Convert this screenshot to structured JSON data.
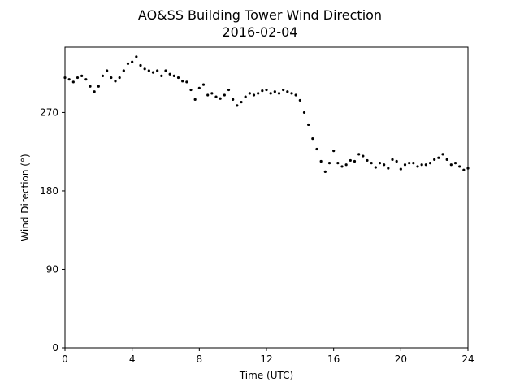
{
  "chart_data": {
    "type": "scatter",
    "title": "AO&SS Building Tower Wind Direction",
    "subtitle": "2016-02-04",
    "xlabel": "Time (UTC)",
    "ylabel": "Wind Direction (°)",
    "xlim": [
      0,
      24
    ],
    "ylim": [
      0,
      345
    ],
    "xticks": [
      0,
      4,
      8,
      12,
      16,
      20,
      24
    ],
    "yticks": [
      0,
      90,
      180,
      270
    ],
    "grid": false,
    "marker_color": "#000000",
    "series": [
      {
        "x": [
          0.0,
          0.25,
          0.5,
          0.75,
          1.0,
          1.25,
          1.5,
          1.75,
          2.0,
          2.25,
          2.5,
          2.75,
          3.0,
          3.25,
          3.5,
          3.75,
          4.0,
          4.25,
          4.5,
          4.75,
          5.0,
          5.25,
          5.5,
          5.75,
          6.0,
          6.25,
          6.5,
          6.75,
          7.0,
          7.25,
          7.5,
          7.75,
          8.0,
          8.25,
          8.5,
          8.75,
          9.0,
          9.25,
          9.5,
          9.75,
          10.0,
          10.25,
          10.5,
          10.75,
          11.0,
          11.25,
          11.5,
          11.75,
          12.0,
          12.25,
          12.5,
          12.75,
          13.0,
          13.25,
          13.5,
          13.75,
          14.0,
          14.25,
          14.5,
          14.75,
          15.0,
          15.25,
          15.5,
          15.75,
          16.0,
          16.25,
          16.5,
          16.75,
          17.0,
          17.25,
          17.5,
          17.75,
          18.0,
          18.25,
          18.5,
          18.75,
          19.0,
          19.25,
          19.5,
          19.75,
          20.0,
          20.25,
          20.5,
          20.75,
          21.0,
          21.25,
          21.5,
          21.75,
          22.0,
          22.25,
          22.5,
          22.75,
          23.0,
          23.25,
          23.5,
          23.75,
          24.0
        ],
        "y": [
          310,
          308,
          305,
          310,
          312,
          308,
          300,
          294,
          300,
          312,
          318,
          310,
          306,
          310,
          318,
          326,
          328,
          334,
          324,
          320,
          318,
          316,
          318,
          312,
          318,
          314,
          312,
          310,
          306,
          305,
          296,
          285,
          298,
          302,
          290,
          292,
          288,
          286,
          290,
          296,
          285,
          278,
          282,
          288,
          292,
          290,
          292,
          295,
          296,
          292,
          294,
          292,
          296,
          294,
          292,
          290,
          284,
          270,
          256,
          240,
          228,
          214,
          202,
          212,
          226,
          212,
          208,
          210,
          215,
          214,
          222,
          220,
          215,
          212,
          207,
          212,
          210,
          206,
          216,
          214,
          205,
          210,
          212,
          212,
          208,
          210,
          210,
          212,
          216,
          218,
          222,
          216,
          210,
          212,
          208,
          204,
          206
        ]
      }
    ]
  }
}
